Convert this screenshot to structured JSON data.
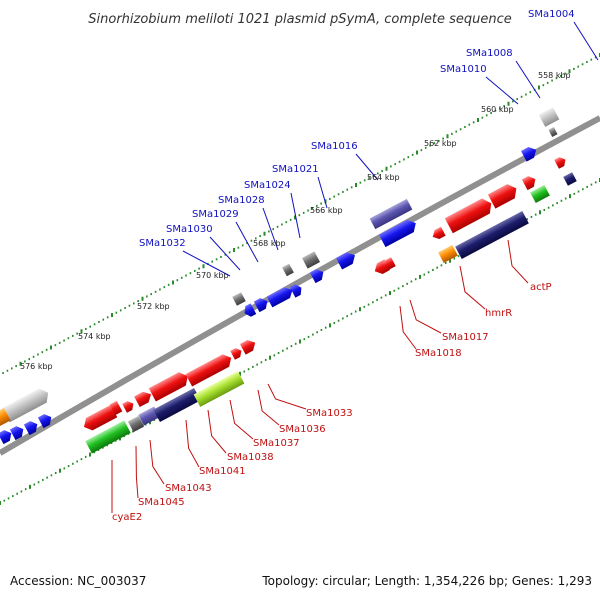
{
  "title": "Sinorhizobium meliloti 1021 plasmid pSymA, complete sequence",
  "footer": {
    "accession": "Accession: NC_003037",
    "topology": "Topology: circular; Length: 1,354,226 bp; Genes: 1,293"
  },
  "colors": {
    "backbone": "#808080",
    "tick": "#2a8a2a",
    "label_top": "#1010c0",
    "label_bottom": "#c01010"
  },
  "ticks": [
    {
      "label": "558 kbp"
    },
    {
      "label": "560 kbp"
    },
    {
      "label": "562 kbp"
    },
    {
      "label": "564 kbp"
    },
    {
      "label": "566 kbp"
    },
    {
      "label": "568 kbp"
    },
    {
      "label": "570 kbp"
    },
    {
      "label": "572 kbp"
    },
    {
      "label": "574 kbp"
    },
    {
      "label": "576 kbp"
    }
  ],
  "genes_top": [
    {
      "label": "SMa1004"
    },
    {
      "label": "SMa1008"
    },
    {
      "label": "SMa1010"
    },
    {
      "label": "SMa1016"
    },
    {
      "label": "SMa1021"
    },
    {
      "label": "SMa1024"
    },
    {
      "label": "SMa1028"
    },
    {
      "label": "SMa1029"
    },
    {
      "label": "SMa1030"
    },
    {
      "label": "SMa1032"
    }
  ],
  "genes_bottom": [
    {
      "label": "actP"
    },
    {
      "label": "hmrR"
    },
    {
      "label": "SMa1017"
    },
    {
      "label": "SMa1018"
    },
    {
      "label": "SMa1033"
    },
    {
      "label": "SMa1036"
    },
    {
      "label": "SMa1037"
    },
    {
      "label": "SMa1038"
    },
    {
      "label": "SMa1041"
    },
    {
      "label": "SMa1043"
    },
    {
      "label": "SMa1045"
    },
    {
      "label": "cyaE2"
    }
  ]
}
